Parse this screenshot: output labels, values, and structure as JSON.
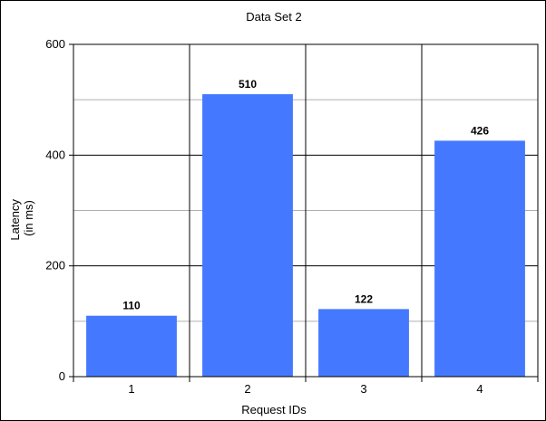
{
  "chart_data": {
    "type": "bar",
    "title": "Data Set 2",
    "xlabel": "Request IDs",
    "ylabel": [
      "Latency",
      "(in ms)"
    ],
    "categories": [
      "1",
      "2",
      "3",
      "4"
    ],
    "values": [
      110,
      510,
      122,
      426
    ],
    "data_labels": [
      "110",
      "510",
      "122",
      "426"
    ],
    "ylim": [
      0,
      600
    ],
    "yticks": [
      0,
      200,
      400,
      600
    ],
    "ytick_labels": [
      "0",
      "200",
      "400",
      "600"
    ],
    "grid": true,
    "legend": "none",
    "colors": {
      "bar": "#4479FF",
      "grid": "#B0B0B0",
      "axis": "#000000",
      "background": "#FFFFFF"
    }
  }
}
